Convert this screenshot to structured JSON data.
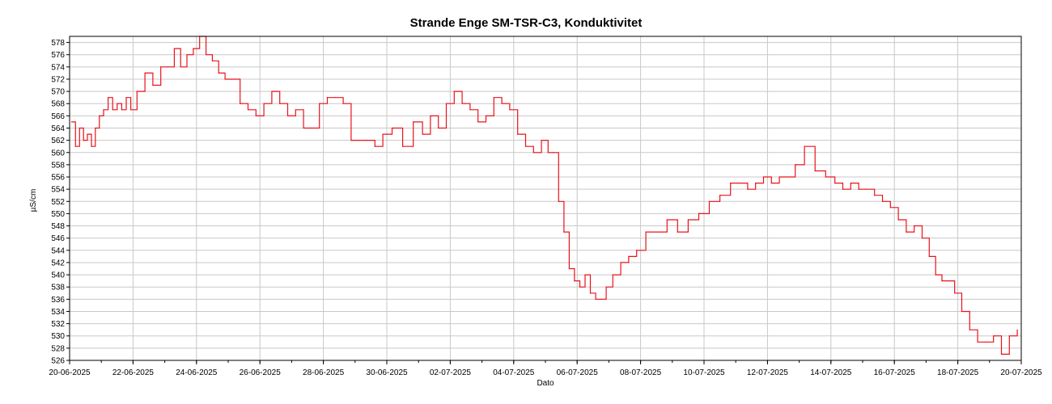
{
  "chart_data": {
    "type": "line",
    "title": "Strande Enge SM-TSR-C3, Konduktivitet",
    "xlabel": "Dato",
    "ylabel": "µS/cm",
    "x_tick_labels": [
      "20-06-2025",
      "22-06-2025",
      "24-06-2025",
      "26-06-2025",
      "28-06-2025",
      "30-06-2025",
      "02-07-2025",
      "04-07-2025",
      "06-07-2025",
      "08-07-2025",
      "10-07-2025",
      "12-07-2025",
      "14-07-2025",
      "16-07-2025",
      "18-07-2025",
      "20-07-2025"
    ],
    "y_tick_labels": [
      "526",
      "528",
      "530",
      "532",
      "534",
      "536",
      "538",
      "540",
      "542",
      "544",
      "546",
      "548",
      "550",
      "552",
      "554",
      "556",
      "558",
      "560",
      "562",
      "564",
      "566",
      "568",
      "570",
      "572",
      "574",
      "576",
      "578"
    ],
    "xlim": [
      "2025-06-20",
      "2025-07-20"
    ],
    "ylim": [
      526,
      579
    ],
    "grid": true,
    "colors": {
      "series": "#e8131b",
      "grid": "#c8c8c8",
      "axis": "#000000"
    },
    "series": [
      {
        "x": [
          "2025-06-20",
          "2025-06-20",
          "2025-06-20",
          "2025-06-20",
          "2025-06-20",
          "2025-06-20",
          "2025-06-20",
          "2025-06-20",
          "2025-06-21",
          "2025-06-21",
          "2025-06-21",
          "2025-06-21",
          "2025-06-21",
          "2025-06-21",
          "2025-06-21",
          "2025-06-22",
          "2025-06-22",
          "2025-06-22",
          "2025-06-22",
          "2025-06-23",
          "2025-06-23",
          "2025-06-23",
          "2025-06-23",
          "2025-06-23",
          "2025-06-24",
          "2025-06-24",
          "2025-06-24",
          "2025-06-24",
          "2025-06-24",
          "2025-06-25",
          "2025-06-25",
          "2025-06-25",
          "2025-06-25",
          "2025-06-26",
          "2025-06-26",
          "2025-06-26",
          "2025-06-26",
          "2025-06-27",
          "2025-06-27",
          "2025-06-27",
          "2025-06-27",
          "2025-06-28",
          "2025-06-28",
          "2025-06-28",
          "2025-06-28",
          "2025-06-29",
          "2025-06-29",
          "2025-06-29",
          "2025-06-29",
          "2025-06-30",
          "2025-06-30",
          "2025-06-30",
          "2025-07-01",
          "2025-07-01",
          "2025-07-01",
          "2025-07-01",
          "2025-07-02",
          "2025-07-02",
          "2025-07-02",
          "2025-07-02",
          "2025-07-03",
          "2025-07-03",
          "2025-07-03",
          "2025-07-03",
          "2025-07-04",
          "2025-07-04",
          "2025-07-04",
          "2025-07-04",
          "2025-07-05",
          "2025-07-05",
          "2025-07-05",
          "2025-07-05",
          "2025-07-05",
          "2025-07-05",
          "2025-07-06",
          "2025-07-06",
          "2025-07-06",
          "2025-07-06",
          "2025-07-06",
          "2025-07-06",
          "2025-07-07",
          "2025-07-07",
          "2025-07-07",
          "2025-07-07",
          "2025-07-08",
          "2025-07-08",
          "2025-07-08",
          "2025-07-09",
          "2025-07-09",
          "2025-07-09",
          "2025-07-10",
          "2025-07-10",
          "2025-07-10",
          "2025-07-11",
          "2025-07-11",
          "2025-07-11",
          "2025-07-11",
          "2025-07-12",
          "2025-07-12",
          "2025-07-12",
          "2025-07-12",
          "2025-07-13",
          "2025-07-13",
          "2025-07-13",
          "2025-07-14",
          "2025-07-14",
          "2025-07-14",
          "2025-07-14",
          "2025-07-15",
          "2025-07-15",
          "2025-07-15",
          "2025-07-15",
          "2025-07-16",
          "2025-07-16",
          "2025-07-16",
          "2025-07-16",
          "2025-07-17",
          "2025-07-17",
          "2025-07-17",
          "2025-07-17",
          "2025-07-17",
          "2025-07-18",
          "2025-07-18",
          "2025-07-18",
          "2025-07-18",
          "2025-07-19",
          "2025-07-19",
          "2025-07-19",
          "2025-07-19"
        ],
        "y": [
          565,
          561,
          564,
          562,
          563,
          561,
          564,
          566,
          567,
          569,
          567,
          568,
          567,
          569,
          567,
          570,
          573,
          571,
          574,
          574,
          577,
          574,
          576,
          577,
          579,
          576,
          575,
          573,
          572,
          572,
          568,
          567,
          566,
          568,
          570,
          568,
          566,
          567,
          564,
          564,
          568,
          569,
          569,
          568,
          562,
          562,
          562,
          561,
          563,
          564,
          561,
          565,
          563,
          566,
          564,
          568,
          570,
          568,
          567,
          565,
          566,
          569,
          568,
          567,
          563,
          561,
          560,
          562,
          560,
          560,
          552,
          547,
          541,
          539,
          538,
          540,
          537,
          536,
          536,
          538,
          540,
          542,
          543,
          544,
          547,
          547,
          549,
          547,
          549,
          550,
          552,
          553,
          555,
          555,
          554,
          555,
          556,
          555,
          556,
          556,
          558,
          561,
          557,
          556,
          555,
          554,
          555,
          554,
          554,
          553,
          552,
          551,
          549,
          547,
          548,
          546,
          543,
          540,
          539,
          539,
          537,
          534,
          531,
          529,
          529,
          530,
          527,
          530,
          531
        ]
      }
    ]
  }
}
